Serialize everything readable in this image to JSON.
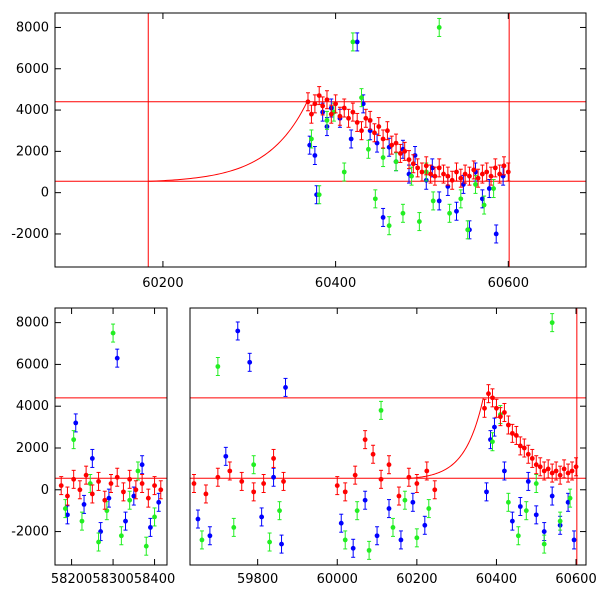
{
  "colors": {
    "red": "#ff0000",
    "green": "#22ee22",
    "blue": "#0000ff",
    "axes": "#000000"
  },
  "chart_data": [
    {
      "type": "scatter",
      "panel": "top",
      "xlim": [
        60075,
        60690
      ],
      "ylim": [
        -3600,
        8700
      ],
      "x_ticks": [
        60200,
        60400,
        60600
      ],
      "y_ticks": [
        -2000,
        0,
        2000,
        4000,
        6000,
        8000
      ],
      "hlines": [
        4400,
        550
      ],
      "vlines": [
        60183,
        60601
      ],
      "model_curve": {
        "type": "exponential-rise",
        "x_start": 60183,
        "x_end": 60367,
        "y_start": 550,
        "y_end": 4400
      },
      "series": [
        {
          "color": "blue",
          "points": [
            [
              60370,
              2300
            ],
            [
              60376,
              1800
            ],
            [
              60378,
              -100
            ],
            [
              60385,
              3900
            ],
            [
              60390,
              3200
            ],
            [
              60395,
              4100
            ],
            [
              60405,
              3600
            ],
            [
              60418,
              2600
            ],
            [
              60425,
              7300
            ],
            [
              60432,
              4300
            ],
            [
              60440,
              3000
            ],
            [
              60448,
              2400
            ],
            [
              60455,
              -1200
            ],
            [
              60462,
              2200
            ],
            [
              60470,
              1500
            ],
            [
              60478,
              2100
            ],
            [
              60485,
              900
            ],
            [
              60492,
              1800
            ],
            [
              60505,
              600
            ],
            [
              60512,
              1200
            ],
            [
              60520,
              -400
            ],
            [
              60530,
              300
            ],
            [
              60540,
              -900
            ],
            [
              60548,
              400
            ],
            [
              60555,
              -1800
            ],
            [
              60562,
              1000
            ],
            [
              60570,
              -300
            ],
            [
              60578,
              200
            ],
            [
              60586,
              -2000
            ],
            [
              60594,
              800
            ]
          ]
        },
        {
          "color": "green",
          "points": [
            [
              60372,
              2600
            ],
            [
              60381,
              -100
            ],
            [
              60390,
              3500
            ],
            [
              60398,
              3900
            ],
            [
              60410,
              1000
            ],
            [
              60420,
              7300
            ],
            [
              60430,
              4600
            ],
            [
              60438,
              2100
            ],
            [
              60446,
              -300
            ],
            [
              60455,
              1700
            ],
            [
              60462,
              -1600
            ],
            [
              60470,
              1500
            ],
            [
              60478,
              -1000
            ],
            [
              60488,
              800
            ],
            [
              60497,
              -1400
            ],
            [
              60505,
              1000
            ],
            [
              60513,
              -400
            ],
            [
              60520,
              8000
            ],
            [
              60532,
              -1000
            ],
            [
              60545,
              -300
            ],
            [
              60553,
              -1800
            ],
            [
              60562,
              400
            ],
            [
              60572,
              -600
            ],
            [
              60583,
              200
            ]
          ]
        },
        {
          "color": "red",
          "points": [
            [
              60368,
              4400
            ],
            [
              60372,
              3800
            ],
            [
              60376,
              4300
            ],
            [
              60381,
              4700
            ],
            [
              60385,
              4200
            ],
            [
              60390,
              4500
            ],
            [
              60395,
              3800
            ],
            [
              60400,
              4300
            ],
            [
              60405,
              3700
            ],
            [
              60410,
              4100
            ],
            [
              60415,
              3600
            ],
            [
              60420,
              3900
            ],
            [
              60425,
              3400
            ],
            [
              60430,
              3000
            ],
            [
              60435,
              3600
            ],
            [
              60440,
              3500
            ],
            [
              60445,
              2900
            ],
            [
              60450,
              3200
            ],
            [
              60455,
              2600
            ],
            [
              60460,
              3000
            ],
            [
              60465,
              2300
            ],
            [
              60470,
              2400
            ],
            [
              60475,
              1900
            ],
            [
              60480,
              2000
            ],
            [
              60485,
              1600
            ],
            [
              60490,
              1400
            ],
            [
              60495,
              1200
            ],
            [
              60500,
              1000
            ],
            [
              60505,
              1300
            ],
            [
              60510,
              900
            ],
            [
              60515,
              800
            ],
            [
              60520,
              1200
            ],
            [
              60525,
              900
            ],
            [
              60530,
              800
            ],
            [
              60535,
              600
            ],
            [
              60540,
              1000
            ],
            [
              60545,
              700
            ],
            [
              60550,
              900
            ],
            [
              60555,
              800
            ],
            [
              60560,
              1100
            ],
            [
              60565,
              700
            ],
            [
              60570,
              900
            ],
            [
              60575,
              1000
            ],
            [
              60580,
              800
            ],
            [
              60585,
              1200
            ],
            [
              60590,
              900
            ],
            [
              60595,
              1300
            ],
            [
              60600,
              1000
            ]
          ]
        }
      ]
    },
    {
      "type": "scatter",
      "panel": "bottom",
      "segments": [
        {
          "xlim": [
            58160,
            58430
          ],
          "x_ticks": [
            58200,
            58300,
            58400
          ]
        },
        {
          "xlim": [
            59630,
            60625
          ],
          "x_ticks": [
            59800,
            60000,
            60200,
            60400,
            60600
          ]
        }
      ],
      "ylim": [
        -3600,
        8700
      ],
      "y_ticks": [
        -2000,
        0,
        2000,
        4000,
        6000,
        8000
      ],
      "hlines": [
        4400,
        550
      ],
      "vlines": [
        60602
      ],
      "model_curve": {
        "type": "exponential-rise",
        "x_start": 60183,
        "x_end": 60367,
        "y_start": 550,
        "y_end": 4400
      },
      "series": [
        {
          "color": "blue",
          "points": [
            [
              58190,
              -1200
            ],
            [
              58210,
              3200
            ],
            [
              58230,
              -700
            ],
            [
              58250,
              1500
            ],
            [
              58270,
              -2000
            ],
            [
              58290,
              -400
            ],
            [
              58310,
              6300
            ],
            [
              58330,
              -1500
            ],
            [
              58350,
              -300
            ],
            [
              58370,
              1200
            ],
            [
              58390,
              -1800
            ],
            [
              58410,
              -600
            ],
            [
              59650,
              -1400
            ],
            [
              59680,
              -2200
            ],
            [
              59720,
              1600
            ],
            [
              59750,
              7600
            ],
            [
              59780,
              6100
            ],
            [
              59810,
              -1300
            ],
            [
              59840,
              600
            ],
            [
              59860,
              -2600
            ],
            [
              59870,
              4900
            ],
            [
              60010,
              -1600
            ],
            [
              60040,
              -2800
            ],
            [
              60070,
              -500
            ],
            [
              60100,
              -2200
            ],
            [
              60130,
              -900
            ],
            [
              60160,
              -2400
            ],
            [
              60190,
              -600
            ],
            [
              60220,
              -1700
            ],
            [
              60375,
              -100
            ],
            [
              60385,
              2400
            ],
            [
              60395,
              3000
            ],
            [
              60420,
              900
            ],
            [
              60440,
              -1500
            ],
            [
              60460,
              -800
            ],
            [
              60480,
              400
            ],
            [
              60500,
              -1200
            ],
            [
              60520,
              -2000
            ],
            [
              60540,
              -300
            ],
            [
              60560,
              -1700
            ],
            [
              60580,
              -600
            ],
            [
              60595,
              -2400
            ]
          ]
        },
        {
          "color": "green",
          "points": [
            [
              58185,
              -900
            ],
            [
              58205,
              2400
            ],
            [
              58225,
              -1500
            ],
            [
              58245,
              300
            ],
            [
              58265,
              -2500
            ],
            [
              58285,
              -1000
            ],
            [
              58300,
              7500
            ],
            [
              58320,
              -2200
            ],
            [
              58340,
              -500
            ],
            [
              58360,
              900
            ],
            [
              58380,
              -2700
            ],
            [
              58400,
              -1300
            ],
            [
              59660,
              -2400
            ],
            [
              59700,
              5900
            ],
            [
              59740,
              -1800
            ],
            [
              59790,
              1200
            ],
            [
              59830,
              -2500
            ],
            [
              59855,
              -1000
            ],
            [
              60020,
              -2400
            ],
            [
              60050,
              -1000
            ],
            [
              60080,
              -2900
            ],
            [
              60110,
              3800
            ],
            [
              60140,
              -1800
            ],
            [
              60170,
              -500
            ],
            [
              60200,
              -2300
            ],
            [
              60230,
              -900
            ],
            [
              60390,
              2300
            ],
            [
              60410,
              3600
            ],
            [
              60430,
              -600
            ],
            [
              60455,
              -2200
            ],
            [
              60475,
              -1000
            ],
            [
              60500,
              300
            ],
            [
              60520,
              -2600
            ],
            [
              60540,
              8000
            ],
            [
              60560,
              -1500
            ],
            [
              60585,
              -400
            ]
          ]
        },
        {
          "color": "red",
          "points": [
            [
              58175,
              200
            ],
            [
              58190,
              -300
            ],
            [
              58205,
              500
            ],
            [
              58220,
              0
            ],
            [
              58235,
              700
            ],
            [
              58250,
              -200
            ],
            [
              58265,
              400
            ],
            [
              58280,
              -500
            ],
            [
              58295,
              300
            ],
            [
              58310,
              600
            ],
            [
              58325,
              -100
            ],
            [
              58340,
              500
            ],
            [
              58355,
              0
            ],
            [
              58370,
              300
            ],
            [
              58385,
              -400
            ],
            [
              58400,
              200
            ],
            [
              58415,
              0
            ],
            [
              59640,
              300
            ],
            [
              59670,
              -200
            ],
            [
              59700,
              600
            ],
            [
              59730,
              900
            ],
            [
              59760,
              400
            ],
            [
              59790,
              -100
            ],
            [
              59815,
              300
            ],
            [
              59840,
              1500
            ],
            [
              59865,
              400
            ],
            [
              60000,
              200
            ],
            [
              60020,
              -100
            ],
            [
              60045,
              700
            ],
            [
              60070,
              2400
            ],
            [
              60090,
              1700
            ],
            [
              60110,
              500
            ],
            [
              60130,
              1200
            ],
            [
              60155,
              -300
            ],
            [
              60180,
              600
            ],
            [
              60200,
              300
            ],
            [
              60225,
              900
            ],
            [
              60245,
              0
            ],
            [
              60370,
              3900
            ],
            [
              60380,
              4600
            ],
            [
              60390,
              4400
            ],
            [
              60400,
              3900
            ],
            [
              60410,
              3500
            ],
            [
              60420,
              3700
            ],
            [
              60430,
              3100
            ],
            [
              60440,
              2700
            ],
            [
              60450,
              2600
            ],
            [
              60460,
              2100
            ],
            [
              60470,
              2000
            ],
            [
              60480,
              1700
            ],
            [
              60490,
              1500
            ],
            [
              60500,
              1200
            ],
            [
              60510,
              1100
            ],
            [
              60520,
              900
            ],
            [
              60530,
              1000
            ],
            [
              60540,
              800
            ],
            [
              60550,
              900
            ],
            [
              60560,
              700
            ],
            [
              60570,
              1000
            ],
            [
              60580,
              800
            ],
            [
              60590,
              900
            ],
            [
              60600,
              1100
            ]
          ]
        }
      ]
    }
  ]
}
